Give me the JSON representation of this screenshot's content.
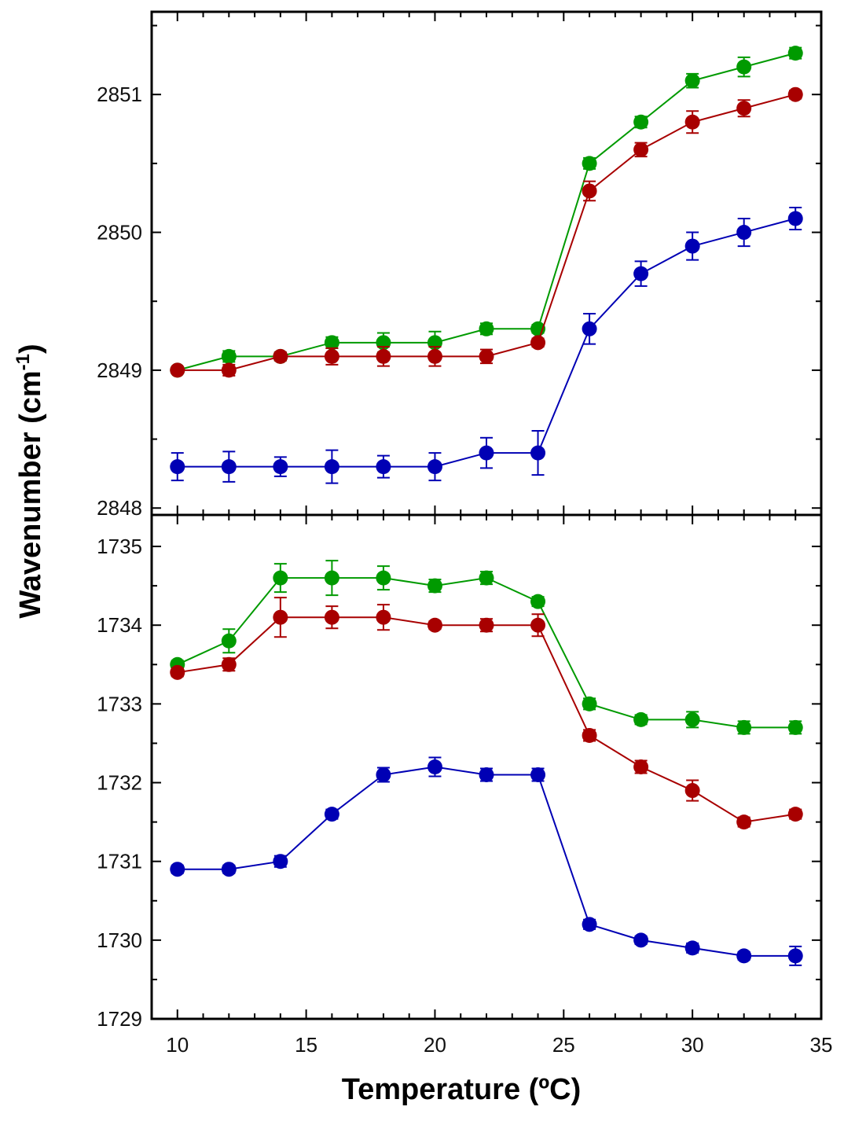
{
  "figure": {
    "xlabel": "Temperature (ºC)",
    "ylabel_main": "Wavenumber (cm",
    "ylabel_sup": "-1",
    "ylabel_close": ")"
  },
  "series_colors": {
    "green": "#009a00",
    "red": "#a80000",
    "blue": "#0000b4"
  },
  "chart_data": [
    {
      "type": "line",
      "panel": "top",
      "title": "",
      "xlabel": "Temperature (ºC)",
      "ylabel": "Wavenumber (cm-1)",
      "xlim": [
        9,
        35
      ],
      "ylim": [
        2847.95,
        2851.6
      ],
      "x": [
        10,
        12,
        14,
        16,
        18,
        20,
        22,
        24,
        26,
        28,
        30,
        32,
        34
      ],
      "x_ticks": [
        "10",
        "15",
        "20",
        "25",
        "30",
        "35"
      ],
      "y_ticks": [
        "2848",
        "2849",
        "2850",
        "2851"
      ],
      "series": [
        {
          "name": "green",
          "color": "#009a00",
          "values": [
            2849.0,
            2849.1,
            2849.1,
            2849.2,
            2849.2,
            2849.2,
            2849.3,
            2849.3,
            2850.5,
            2850.8,
            2851.1,
            2851.2,
            2851.3
          ],
          "errors": [
            0.02,
            0.04,
            0.03,
            0.04,
            0.07,
            0.08,
            0.04,
            0.03,
            0.04,
            0.04,
            0.05,
            0.07,
            0.04
          ]
        },
        {
          "name": "red",
          "color": "#a80000",
          "values": [
            2849.0,
            2849.0,
            2849.1,
            2849.1,
            2849.1,
            2849.1,
            2849.1,
            2849.2,
            2850.3,
            2850.6,
            2850.8,
            2850.9,
            2851.0
          ],
          "errors": [
            0.02,
            0.04,
            0.03,
            0.06,
            0.07,
            0.07,
            0.05,
            0.03,
            0.07,
            0.05,
            0.08,
            0.06,
            0.03
          ]
        },
        {
          "name": "blue",
          "color": "#0000b4",
          "values": [
            2848.3,
            2848.3,
            2848.3,
            2848.3,
            2848.3,
            2848.3,
            2848.4,
            2848.4,
            2849.3,
            2849.7,
            2849.9,
            2850.0,
            2850.1
          ],
          "errors": [
            0.1,
            0.11,
            0.07,
            0.12,
            0.08,
            0.1,
            0.11,
            0.16,
            0.11,
            0.09,
            0.1,
            0.1,
            0.08
          ]
        }
      ]
    },
    {
      "type": "line",
      "panel": "bottom",
      "title": "",
      "xlabel": "Temperature (ºC)",
      "ylabel": "Wavenumber (cm-1)",
      "xlim": [
        9,
        35
      ],
      "ylim": [
        1729,
        1735.4
      ],
      "x": [
        10,
        12,
        14,
        16,
        18,
        20,
        22,
        24,
        26,
        28,
        30,
        32,
        34
      ],
      "x_ticks": [
        "10",
        "15",
        "20",
        "25",
        "30",
        "35"
      ],
      "y_ticks": [
        "1729",
        "1730",
        "1731",
        "1732",
        "1733",
        "1734",
        "1735"
      ],
      "series": [
        {
          "name": "green",
          "color": "#009a00",
          "values": [
            1733.5,
            1733.8,
            1734.6,
            1734.6,
            1734.6,
            1734.5,
            1734.6,
            1734.3,
            1733.0,
            1732.8,
            1732.8,
            1732.7,
            1732.7
          ],
          "errors": [
            0.05,
            0.15,
            0.18,
            0.22,
            0.15,
            0.08,
            0.08,
            0.06,
            0.07,
            0.06,
            0.1,
            0.08,
            0.08
          ]
        },
        {
          "name": "red",
          "color": "#a80000",
          "values": [
            1733.4,
            1733.5,
            1734.1,
            1734.1,
            1734.1,
            1734.0,
            1734.0,
            1734.0,
            1732.6,
            1732.2,
            1731.9,
            1731.5,
            1731.6
          ],
          "errors": [
            0.05,
            0.08,
            0.25,
            0.14,
            0.16,
            0.05,
            0.08,
            0.14,
            0.07,
            0.08,
            0.13,
            0.06,
            0.06
          ]
        },
        {
          "name": "blue",
          "color": "#0000b4",
          "values": [
            1730.9,
            1730.9,
            1731.0,
            1731.6,
            1732.1,
            1732.2,
            1732.1,
            1732.1,
            1730.2,
            1730.0,
            1729.9,
            1729.8,
            1729.8
          ],
          "errors": [
            0.05,
            0.05,
            0.07,
            0.06,
            0.09,
            0.12,
            0.08,
            0.08,
            0.06,
            0.05,
            0.06,
            0.05,
            0.12
          ]
        }
      ]
    }
  ]
}
